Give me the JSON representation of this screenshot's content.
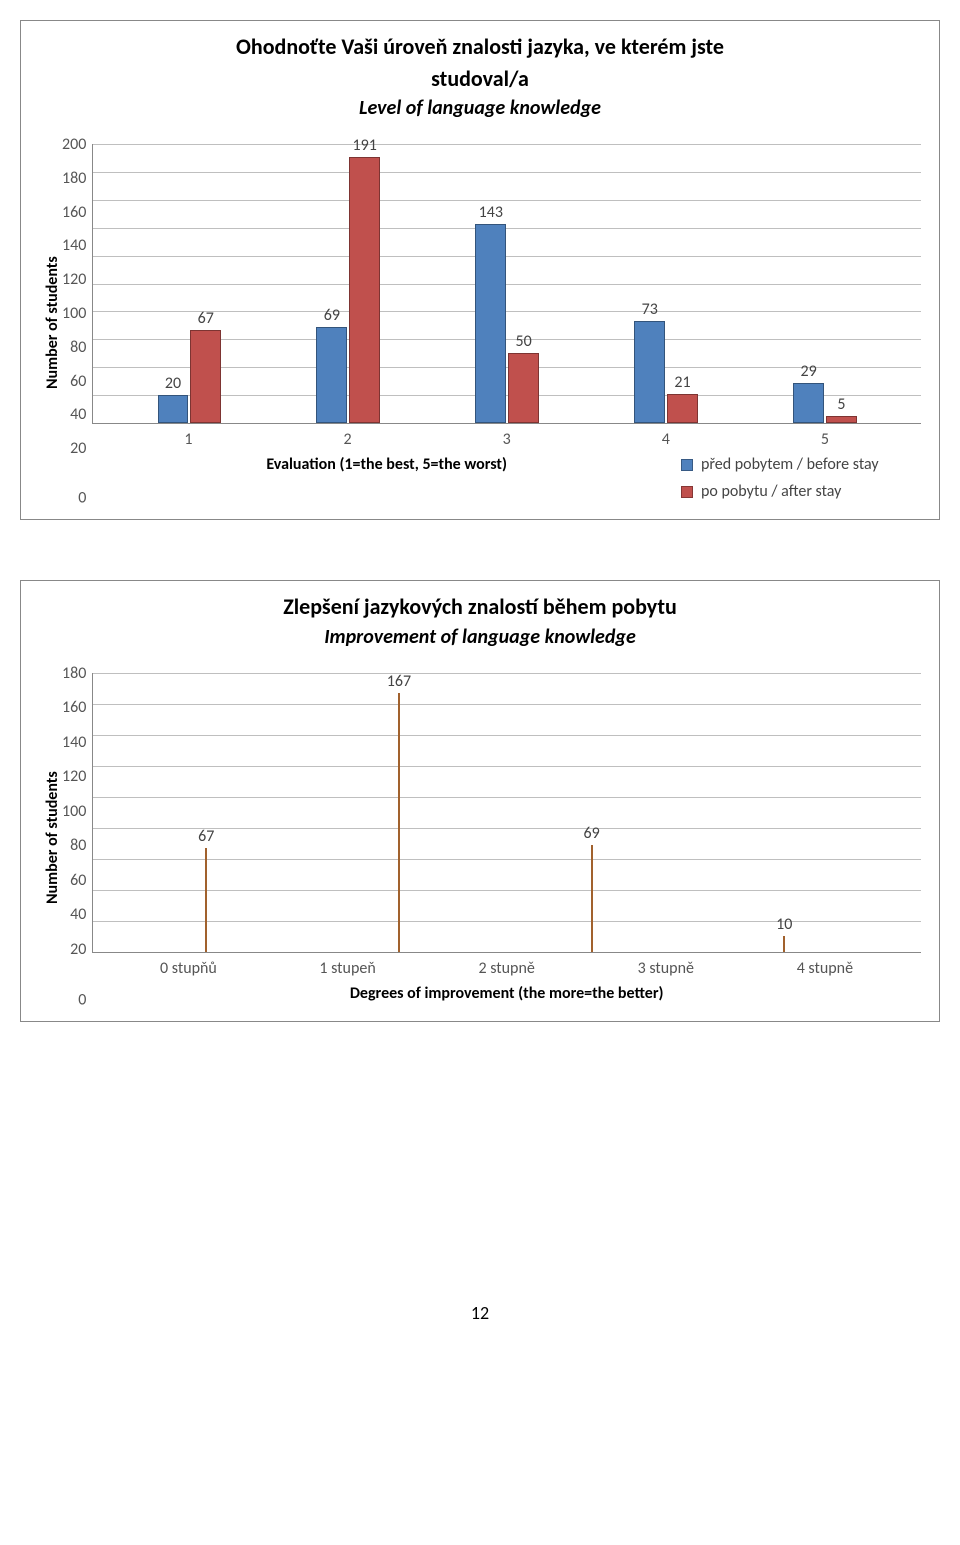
{
  "chart1": {
    "type": "bar",
    "title_line1": "Ohodnoťte Vaši úroveň znalosti jazyka, ve kterém jste",
    "title_line2": "studoval/a",
    "subtitle": "Level of language knowledge",
    "y_axis_label": "Number of students",
    "x_axis_label": "Evaluation (1=the best, 5=the worst)",
    "y_max": 200,
    "y_ticks": [
      "200",
      "180",
      "160",
      "140",
      "120",
      "100",
      "80",
      "60",
      "40",
      "20",
      "0"
    ],
    "categories": [
      "1",
      "2",
      "3",
      "4",
      "5"
    ],
    "series": [
      {
        "name": "před pobytem / before stay",
        "color": "#4f81bd",
        "values": [
          20,
          69,
          143,
          73,
          29
        ]
      },
      {
        "name": "po pobytu / after stay",
        "color": "#c0504d",
        "values": [
          67,
          191,
          50,
          21,
          5
        ]
      }
    ],
    "grid_color": "#bfbfbf",
    "background_color": "#ffffff",
    "title_fontsize": 22,
    "label_fontsize": 16
  },
  "chart2": {
    "type": "bar",
    "title": "Zlepšení jazykových znalostí během pobytu",
    "subtitle": "Improvement of language knowledge",
    "y_axis_label": "Number of students",
    "x_axis_label": "Degrees of improvement (the more=the better)",
    "y_max": 180,
    "y_ticks": [
      "180",
      "160",
      "140",
      "120",
      "100",
      "80",
      "60",
      "40",
      "20",
      "0"
    ],
    "categories": [
      "0 stupňů",
      "1 stupeň",
      "2 stupně",
      "3 stupně",
      "4 stupně"
    ],
    "series": [
      {
        "name": "",
        "color": "#f79646",
        "values": [
          67,
          167,
          69,
          10,
          1
        ]
      }
    ],
    "grid_color": "#bfbfbf",
    "background_color": "#ffffff",
    "title_fontsize": 22,
    "label_fontsize": 16
  },
  "page_number": "12"
}
